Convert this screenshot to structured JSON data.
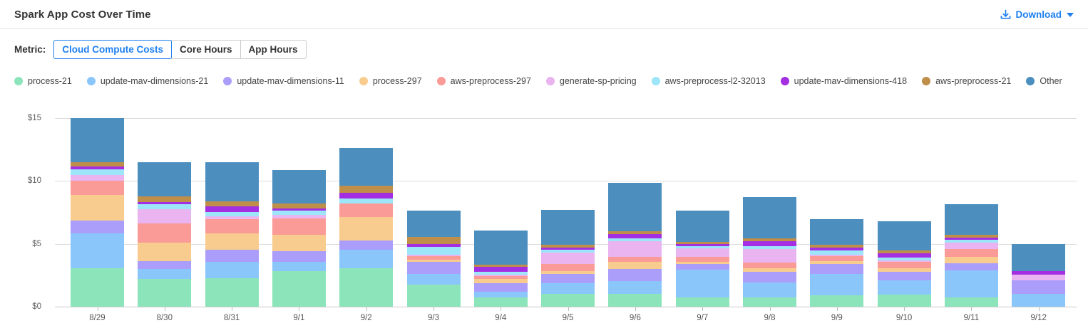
{
  "header": {
    "title": "Spark App Cost Over Time",
    "download_label": "Download"
  },
  "controls": {
    "metric_label": "Metric:",
    "options": [
      {
        "label": "Cloud Compute Costs",
        "selected": true
      },
      {
        "label": "Core Hours",
        "selected": false
      },
      {
        "label": "App Hours",
        "selected": false
      }
    ]
  },
  "colors": {
    "accent": "#1d7ff0",
    "gridline": "#dcdcdc",
    "axis_line": "#c9c9c9",
    "axis_text": "#606060"
  },
  "chart_data": {
    "type": "bar",
    "stacked": true,
    "title": "Spark App Cost Over Time",
    "xlabel": "",
    "ylabel": "",
    "ylim": [
      0,
      15
    ],
    "y_tick_values": [
      0,
      5,
      10,
      15
    ],
    "y_tick_labels": [
      "$0",
      "$5",
      "$10",
      "$15"
    ],
    "grid": true,
    "legend_position": "top",
    "categories": [
      "8/29",
      "8/30",
      "8/31",
      "9/1",
      "9/2",
      "9/3",
      "9/4",
      "9/5",
      "9/6",
      "9/7",
      "9/8",
      "9/9",
      "9/10",
      "9/11",
      "9/12"
    ],
    "series": [
      {
        "name": "process-21",
        "color": "#8ce4bb",
        "values": [
          3.05,
          2.18,
          2.27,
          2.84,
          3.08,
          1.76,
          0.72,
          1.0,
          1.0,
          0.72,
          0.76,
          0.91,
          0.95,
          0.76,
          0
        ]
      },
      {
        "name": "update-mav-dimensions-21",
        "color": "#8bc6fb",
        "values": [
          2.78,
          0.81,
          1.32,
          0.72,
          1.46,
          0.85,
          0.47,
          0.85,
          1.04,
          2.23,
          1.19,
          1.7,
          1.13,
          2.14,
          1.0
        ]
      },
      {
        "name": "update-mav-dimensions-11",
        "color": "#ab9dfa",
        "values": [
          1.0,
          0.61,
          0.95,
          0.85,
          0.72,
          0.95,
          0.66,
          0.76,
          0.98,
          0.45,
          0.85,
          0.79,
          0.68,
          0.57,
          1.08
        ]
      },
      {
        "name": "process-297",
        "color": "#f8cc8e",
        "values": [
          2.03,
          1.48,
          1.29,
          1.32,
          1.89,
          0.17,
          0.34,
          0.23,
          0.53,
          0.19,
          0.23,
          0.25,
          0.32,
          0.51,
          0
        ]
      },
      {
        "name": "aws-preprocess-297",
        "color": "#fb9b97",
        "values": [
          1.14,
          1.55,
          1.14,
          1.29,
          1.04,
          0.28,
          0.23,
          0.57,
          0.42,
          0.38,
          0.49,
          0.38,
          0.51,
          0.62,
          0
        ]
      },
      {
        "name": "generate-sp-pricing",
        "color": "#e9b4ef",
        "values": [
          0.47,
          1.14,
          0.23,
          0.28,
          0,
          0.15,
          0.15,
          0.87,
          1.25,
          0.68,
          1.08,
          0.13,
          0.11,
          0.47,
          0.47
        ]
      },
      {
        "name": "aws-preprocess-l2-32013",
        "color": "#9de6fa",
        "values": [
          0.44,
          0.38,
          0.34,
          0.32,
          0.42,
          0.57,
          0.23,
          0.26,
          0.19,
          0.19,
          0.19,
          0.3,
          0.19,
          0.23,
          0
        ]
      },
      {
        "name": "update-mav-dimensions-418",
        "color": "#a42ee2",
        "values": [
          0.23,
          0.19,
          0.42,
          0.19,
          0.47,
          0.23,
          0.38,
          0.15,
          0.38,
          0.13,
          0.43,
          0.23,
          0.38,
          0.19,
          0.28
        ]
      },
      {
        "name": "aws-preprocess-21",
        "color": "#bf8e49",
        "values": [
          0.34,
          0.44,
          0.44,
          0.38,
          0.53,
          0.57,
          0.15,
          0.23,
          0.23,
          0.19,
          0.19,
          0.23,
          0.23,
          0.25,
          0
        ]
      },
      {
        "name": "Other",
        "color": "#4c8fbf",
        "values": [
          3.54,
          2.71,
          3.09,
          2.67,
          3.02,
          2.14,
          2.74,
          2.76,
          3.82,
          2.51,
          3.29,
          2.04,
          2.27,
          2.4,
          2.17
        ]
      }
    ]
  }
}
